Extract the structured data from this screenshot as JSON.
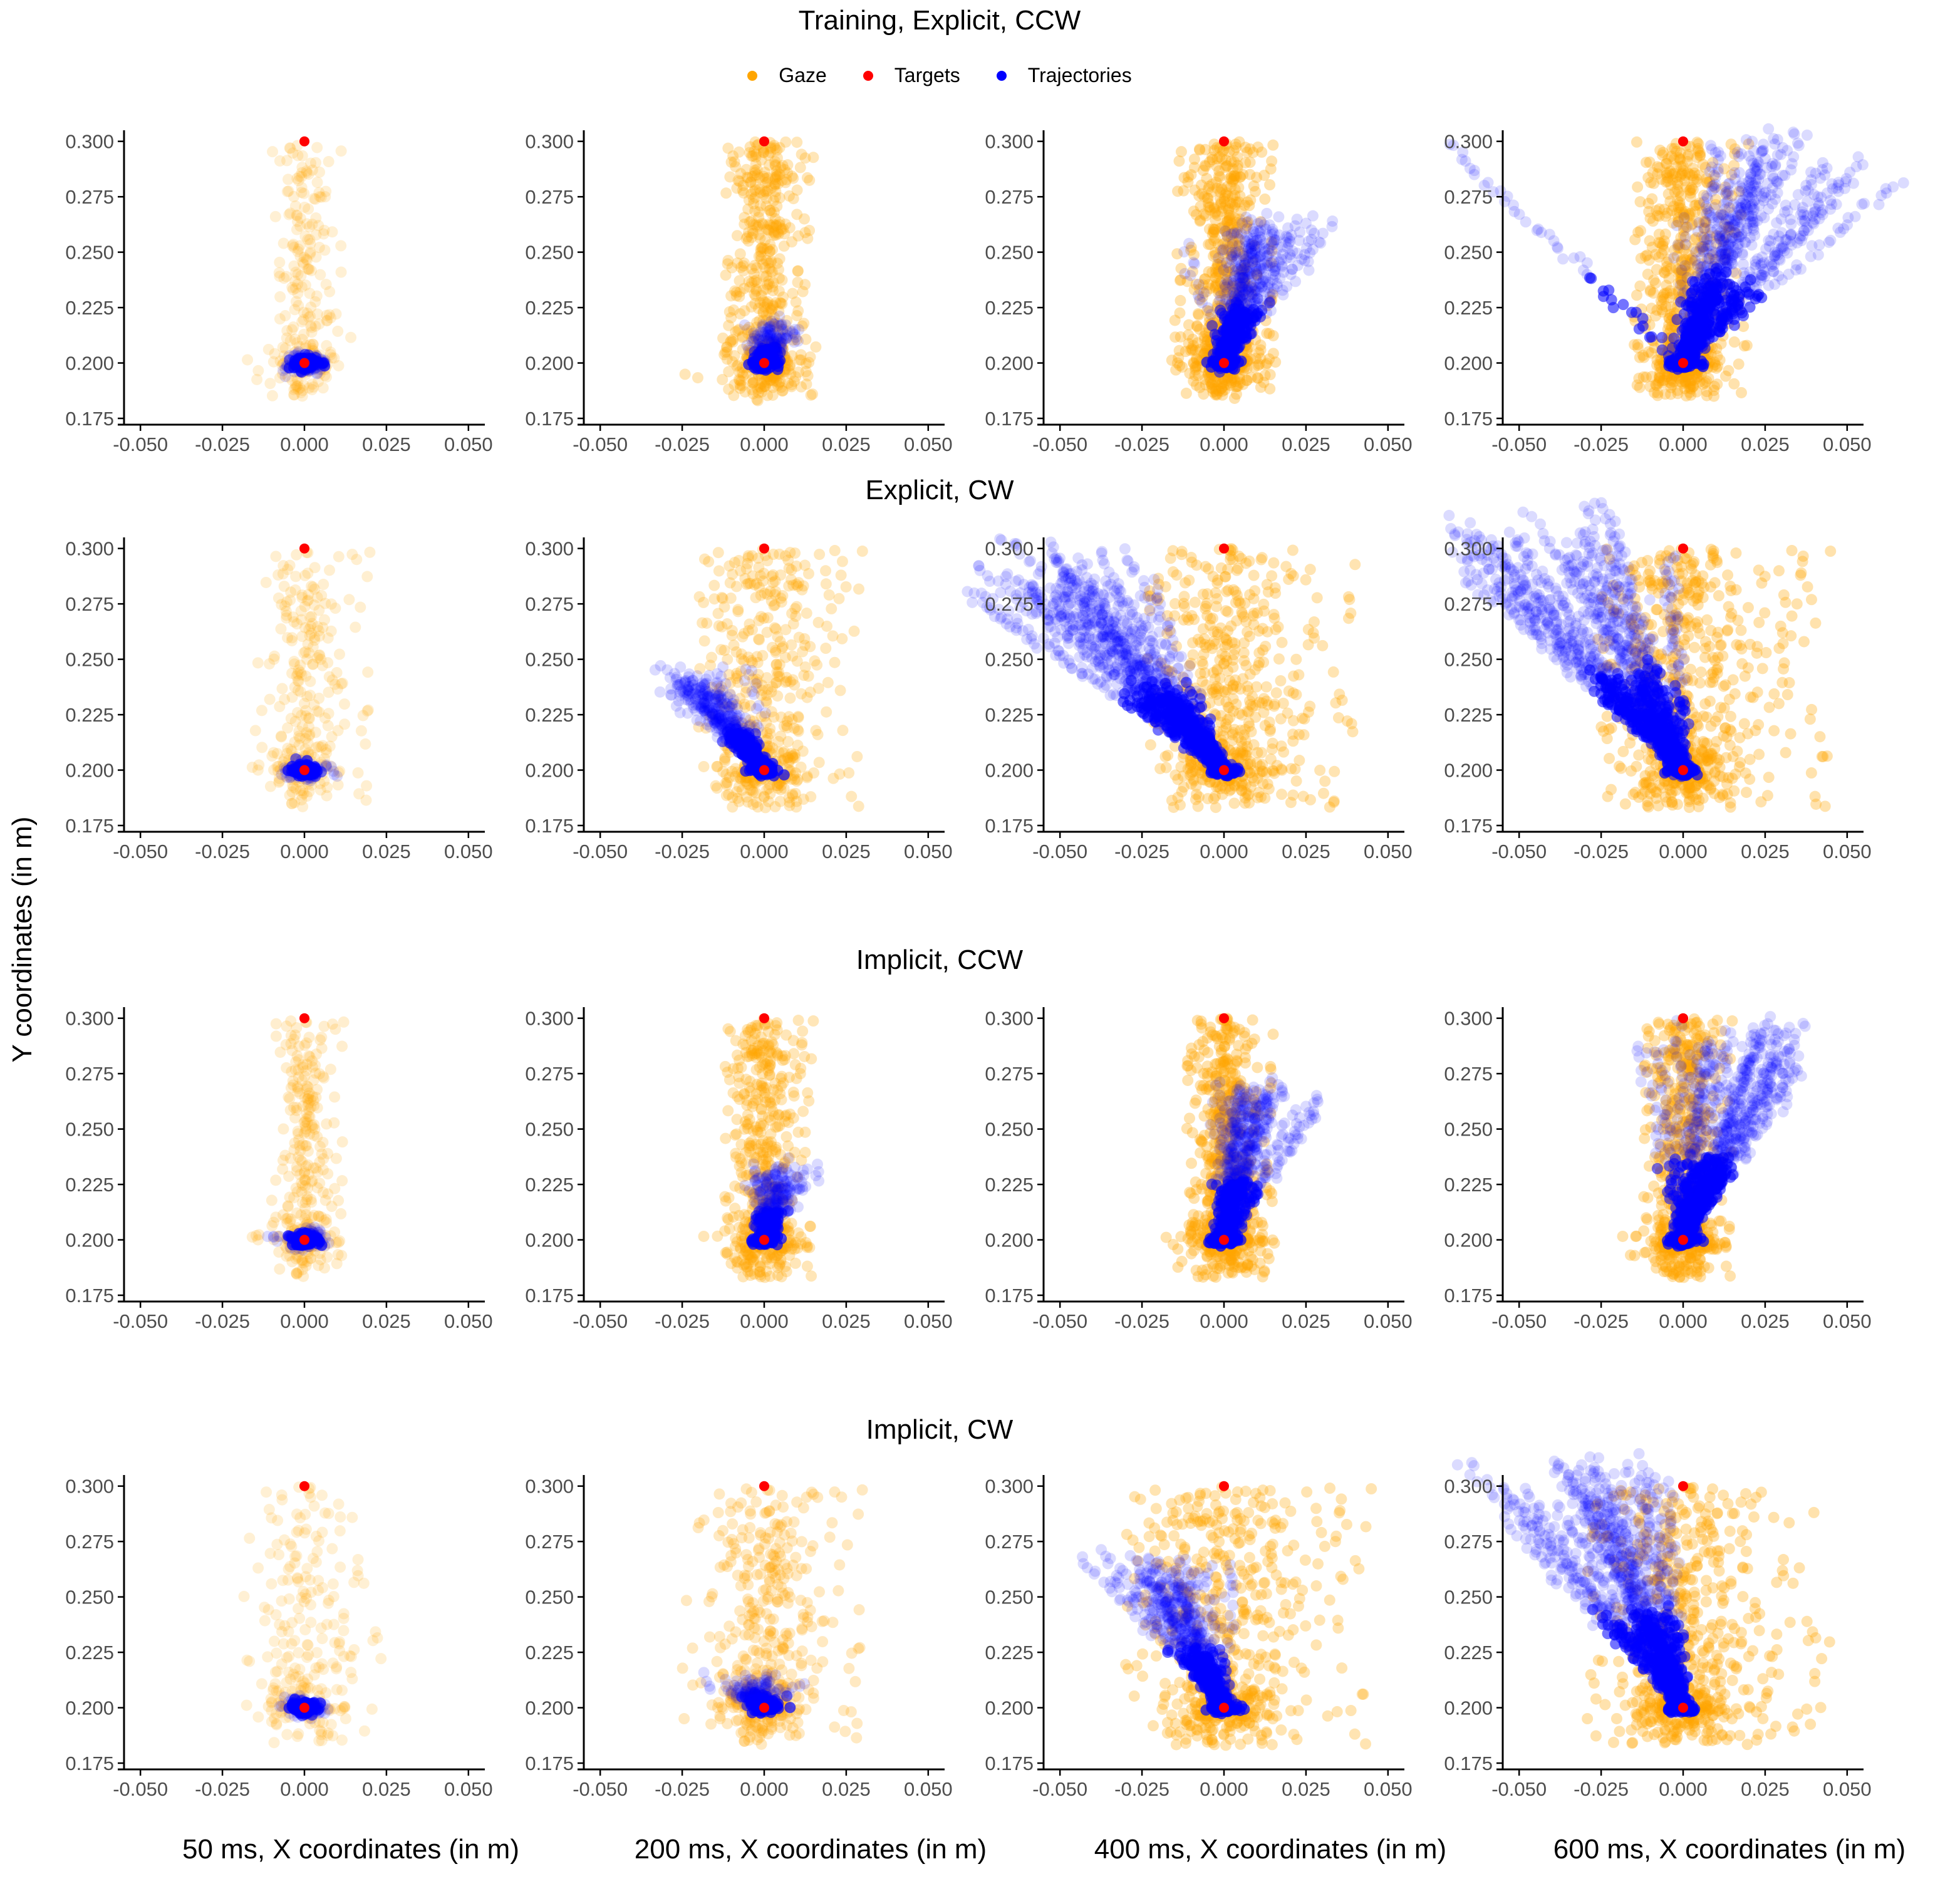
{
  "row_titles": [
    "Training, Explicit, CCW",
    "Explicit, CW",
    "Implicit, CCW",
    "Implicit, CW"
  ],
  "legend": [
    {
      "label": "Gaze",
      "color": "#ffa500"
    },
    {
      "label": "Targets",
      "color": "#ff0000"
    },
    {
      "label": "Trajectories",
      "color": "#0000ff"
    }
  ],
  "y_axis_title": "Y coordinates (in m)",
  "x_axis_titles": [
    "50 ms, X coordinates (in m)",
    "200 ms, X coordinates (in m)",
    "400 ms, X coordinates (in m)",
    "600 ms, X coordinates (in m)"
  ],
  "colors": {
    "gaze": "#ffa500",
    "targets": "#ff0000",
    "trajectories": "#0000ff",
    "axis": "#000000",
    "tick_text": "#4d4d4d"
  },
  "chart_data": {
    "type": "scatter",
    "layout": "4x4 facet grid (rows: condition, columns: time)",
    "xlim": [
      -0.055,
      0.055
    ],
    "ylim": [
      0.175,
      0.305
    ],
    "x_ticks": [
      -0.05,
      -0.025,
      0.0,
      0.025,
      0.05
    ],
    "x_tick_labels": [
      "-0.050",
      "-0.025",
      "0.000",
      "0.025",
      "0.050"
    ],
    "y_ticks": [
      0.175,
      0.2,
      0.225,
      0.25,
      0.275,
      0.3
    ],
    "y_tick_labels": [
      "0.175",
      "0.200",
      "0.225",
      "0.250",
      "0.275",
      "0.300"
    ],
    "grid": false,
    "legend_position": "top",
    "targets": [
      {
        "x": 0.0,
        "y": 0.2
      },
      {
        "x": 0.0,
        "y": 0.3
      }
    ],
    "columns": [
      "50 ms",
      "200 ms",
      "400 ms",
      "600 ms"
    ],
    "rows": [
      "Training, Explicit, CCW",
      "Explicit, CW",
      "Implicit, CCW",
      "Implicit, CW"
    ],
    "panels": [
      {
        "row": 0,
        "col": 0,
        "gaze": {
          "x_range": [
            -0.01,
            0.012
          ],
          "y_range": [
            0.185,
            0.3
          ],
          "density": 0.25
        },
        "trajectories": {
          "end_x": 0.0,
          "end_y": 0.2,
          "spread": 0.004
        }
      },
      {
        "row": 0,
        "col": 1,
        "gaze": {
          "x_range": [
            -0.012,
            0.015
          ],
          "y_range": [
            0.185,
            0.3
          ],
          "density": 0.8
        },
        "trajectories": {
          "end_x": 0.004,
          "end_y": 0.215,
          "spread": 0.005
        }
      },
      {
        "row": 0,
        "col": 2,
        "gaze": {
          "x_range": [
            -0.015,
            0.015
          ],
          "y_range": [
            0.185,
            0.3
          ],
          "density": 1.0
        },
        "trajectories": {
          "end_x": 0.012,
          "end_y": 0.26,
          "spread": 0.008
        }
      },
      {
        "row": 0,
        "col": 3,
        "gaze": {
          "x_range": [
            -0.015,
            0.02
          ],
          "y_range": [
            0.185,
            0.3
          ],
          "density": 1.0
        },
        "trajectories": {
          "end_x": 0.025,
          "end_y": 0.29,
          "spread": 0.02
        }
      },
      {
        "row": 1,
        "col": 0,
        "gaze": {
          "x_range": [
            -0.015,
            0.02
          ],
          "y_range": [
            0.183,
            0.3
          ],
          "density": 0.3
        },
        "trajectories": {
          "end_x": 0.0,
          "end_y": 0.2,
          "spread": 0.004
        }
      },
      {
        "row": 1,
        "col": 1,
        "gaze": {
          "x_range": [
            -0.02,
            0.03
          ],
          "y_range": [
            0.183,
            0.3
          ],
          "density": 0.7
        },
        "trajectories": {
          "end_x": -0.02,
          "end_y": 0.24,
          "spread": 0.006
        }
      },
      {
        "row": 1,
        "col": 2,
        "gaze": {
          "x_range": [
            -0.025,
            0.04
          ],
          "y_range": [
            0.183,
            0.3
          ],
          "density": 0.9
        },
        "trajectories": {
          "end_x": -0.05,
          "end_y": 0.29,
          "spread": 0.012
        }
      },
      {
        "row": 1,
        "col": 3,
        "gaze": {
          "x_range": [
            -0.025,
            0.045
          ],
          "y_range": [
            0.183,
            0.3
          ],
          "density": 1.0
        },
        "trajectories": {
          "end_x": -0.045,
          "end_y": 0.3,
          "spread": 0.02
        }
      },
      {
        "row": 2,
        "col": 0,
        "gaze": {
          "x_range": [
            -0.01,
            0.012
          ],
          "y_range": [
            0.183,
            0.3
          ],
          "density": 0.35
        },
        "trajectories": {
          "end_x": 0.0,
          "end_y": 0.2,
          "spread": 0.004
        }
      },
      {
        "row": 2,
        "col": 1,
        "gaze": {
          "x_range": [
            -0.012,
            0.015
          ],
          "y_range": [
            0.183,
            0.3
          ],
          "density": 0.8
        },
        "trajectories": {
          "end_x": 0.004,
          "end_y": 0.23,
          "spread": 0.005
        }
      },
      {
        "row": 2,
        "col": 2,
        "gaze": {
          "x_range": [
            -0.012,
            0.015
          ],
          "y_range": [
            0.183,
            0.3
          ],
          "density": 1.0
        },
        "trajectories": {
          "end_x": 0.012,
          "end_y": 0.265,
          "spread": 0.008
        }
      },
      {
        "row": 2,
        "col": 3,
        "gaze": {
          "x_range": [
            -0.012,
            0.015
          ],
          "y_range": [
            0.183,
            0.3
          ],
          "density": 1.0
        },
        "trajectories": {
          "end_x": 0.025,
          "end_y": 0.29,
          "spread": 0.018
        }
      },
      {
        "row": 3,
        "col": 0,
        "gaze": {
          "x_range": [
            -0.02,
            0.025
          ],
          "y_range": [
            0.183,
            0.3
          ],
          "density": 0.25
        },
        "trajectories": {
          "end_x": 0.0,
          "end_y": 0.2,
          "spread": 0.004
        }
      },
      {
        "row": 3,
        "col": 1,
        "gaze": {
          "x_range": [
            -0.025,
            0.03
          ],
          "y_range": [
            0.183,
            0.3
          ],
          "density": 0.6
        },
        "trajectories": {
          "end_x": -0.005,
          "end_y": 0.21,
          "spread": 0.005
        }
      },
      {
        "row": 3,
        "col": 2,
        "gaze": {
          "x_range": [
            -0.03,
            0.045
          ],
          "y_range": [
            0.183,
            0.3
          ],
          "density": 0.9
        },
        "trajectories": {
          "end_x": -0.02,
          "end_y": 0.26,
          "spread": 0.008
        }
      },
      {
        "row": 3,
        "col": 3,
        "gaze": {
          "x_range": [
            -0.03,
            0.045
          ],
          "y_range": [
            0.183,
            0.3
          ],
          "density": 1.0
        },
        "trajectories": {
          "end_x": -0.03,
          "end_y": 0.3,
          "spread": 0.015
        }
      }
    ]
  }
}
